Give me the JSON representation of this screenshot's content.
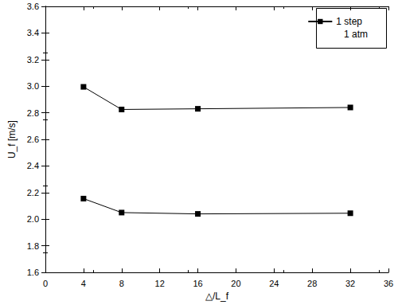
{
  "chart_data": {
    "type": "line",
    "x_label": "△/L_f",
    "y_label": "U_f [m/s]",
    "x": [
      4,
      8,
      16,
      32
    ],
    "series": [
      {
        "name": "1 step",
        "color": "#000000",
        "marker": "square",
        "line_style": "solid",
        "values": [
          2.995,
          2.825,
          2.83,
          2.84
        ]
      },
      {
        "name": null,
        "color": "#000000",
        "marker": "square",
        "line_style": "solid",
        "values": [
          2.155,
          2.05,
          2.04,
          2.045
        ]
      }
    ],
    "annotations": [
      "1 atm"
    ],
    "xlim": [
      0,
      36
    ],
    "xticks": [
      0,
      4,
      8,
      12,
      16,
      20,
      24,
      28,
      32,
      36
    ],
    "ylim": [
      1.6,
      3.6
    ],
    "yticks": [
      1.6,
      1.8,
      {
        "value": 2,
        "label": "2.0"
      },
      2.2,
      2.4,
      2.6,
      2.8,
      {
        "value": 3,
        "label": "3.0"
      },
      3.2,
      3.4,
      3.6
    ],
    "grid": false,
    "legend": "upper right"
  }
}
